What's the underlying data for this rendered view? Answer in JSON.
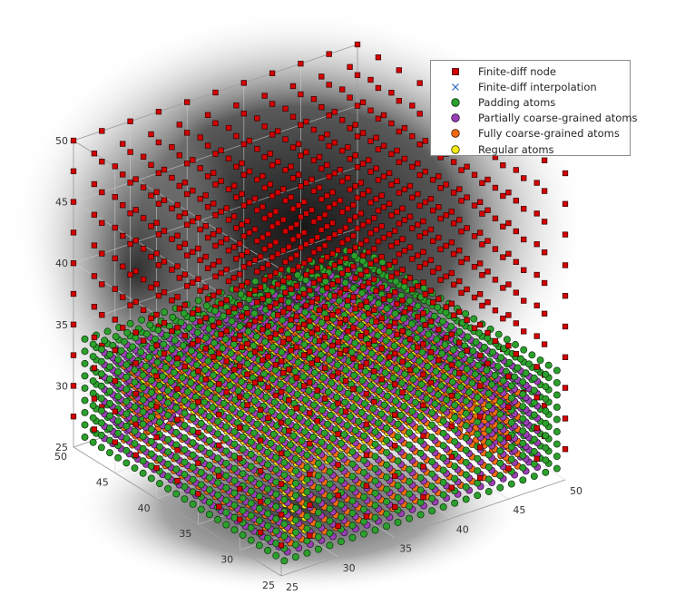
{
  "chart_data": {
    "type": "scatter",
    "dimensions": 3,
    "xlim": [
      25,
      50
    ],
    "ylim": [
      25,
      50
    ],
    "zlim": [
      25,
      50
    ],
    "x_ticks": [
      "25",
      "30",
      "35",
      "40",
      "45",
      "50"
    ],
    "y_ticks": [
      "25",
      "30",
      "35",
      "40",
      "45",
      "50"
    ],
    "z_ticks": [
      "25",
      "30",
      "35",
      "40",
      "45",
      "50"
    ],
    "grid": true,
    "legend_position": "top-right",
    "background_shading": "dark radial glow behind the point cloud",
    "series": [
      {
        "name": "Finite-diff node",
        "marker": "square",
        "color": "#d40000",
        "edge": "#330000",
        "grid_start": 25,
        "grid_end": 50,
        "grid_step": 2.5,
        "z_min": 27.5,
        "description": "regular finite-difference grid filling the box above the atomistic block"
      },
      {
        "name": "Finite-diff interpolation",
        "marker": "x",
        "color": "#1f5fbf",
        "count_visible": 0
      },
      {
        "name": "Padding atoms",
        "marker": "circle",
        "color": "#2ca02c",
        "edge": "#0e300e",
        "range": [
          26,
          50
        ],
        "z_top": 33.5,
        "shell": "outer"
      },
      {
        "name": "Partially coarse-grained atoms",
        "marker": "circle",
        "color": "#9b3fb5",
        "edge": "#2a0e33",
        "shell": "second"
      },
      {
        "name": "Fully coarse-grained atoms",
        "marker": "circle",
        "color": "#f26b11",
        "edge": "#3a1800",
        "shell": "third"
      },
      {
        "name": "Regular atoms",
        "marker": "circle",
        "color": "#f5ea14",
        "edge": "#3a3700",
        "shell": "core"
      }
    ]
  }
}
